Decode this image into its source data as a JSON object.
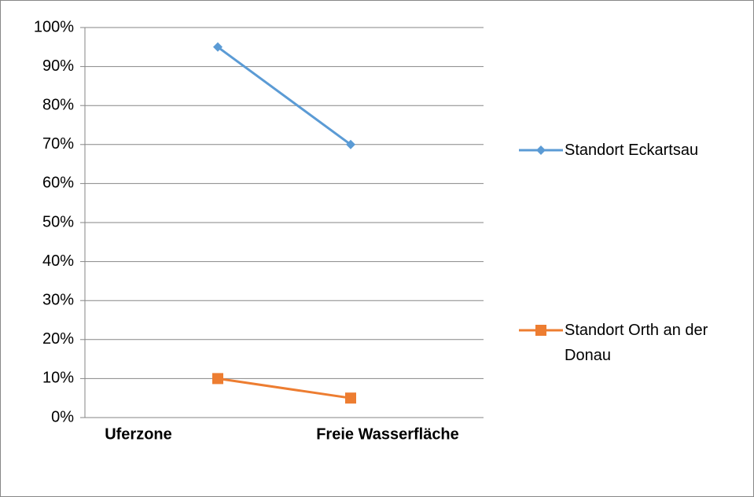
{
  "chart_data": {
    "type": "line",
    "categories": [
      "Uferzone",
      "Freie Wasserfläche"
    ],
    "series": [
      {
        "name": "Standort Eckartsau",
        "color": "#5b9bd5",
        "marker": "diamond",
        "values": [
          95,
          70
        ]
      },
      {
        "name": "Standort Orth an der Donau",
        "color": "#ed7d31",
        "marker": "square",
        "values": [
          10,
          5
        ]
      }
    ],
    "ylim": [
      0,
      100
    ],
    "yticks": [
      {
        "value": 0,
        "label": "0%"
      },
      {
        "value": 10,
        "label": "10%"
      },
      {
        "value": 20,
        "label": "20%"
      },
      {
        "value": 30,
        "label": "30%"
      },
      {
        "value": 40,
        "label": "40%"
      },
      {
        "value": 50,
        "label": "50%"
      },
      {
        "value": 60,
        "label": "60%"
      },
      {
        "value": 70,
        "label": "70%"
      },
      {
        "value": 80,
        "label": "80%"
      },
      {
        "value": 90,
        "label": "90%"
      },
      {
        "value": 100,
        "label": "100%"
      }
    ],
    "grid": true,
    "legend": "right"
  }
}
